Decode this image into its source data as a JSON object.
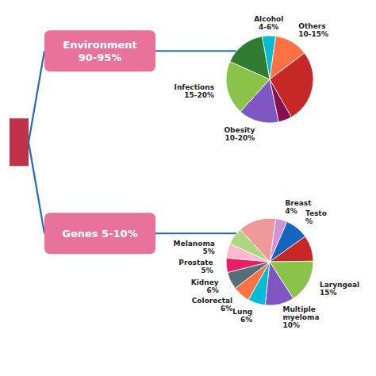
{
  "chart_data": [
    {
      "type": "pie",
      "title": "Environment\n90-95%",
      "color": "#e8729a",
      "categories": [
        "Alcohol\n4-6%",
        "Others\n10-15%",
        null,
        null,
        "Obesity\n10-20%",
        "Infections\n15-20%",
        null
      ],
      "values": [
        5,
        12.5,
        27,
        5,
        15,
        20,
        15.5
      ],
      "colors": [
        "#00bcd4",
        "#ff7043",
        "#c62828",
        "#880e4f",
        "#7e57c2",
        "#8bc34a",
        "#2e7d32"
      ]
    },
    {
      "type": "pie",
      "title": "Genes 5-10%",
      "color": "#e8729a",
      "categories": [
        "Breast\n4%",
        "Testo\n%",
        null,
        "Laryngeal\n15%",
        "Multiple\nmyeloma\n10%",
        "Lung\n6%",
        "Colorectal\n6%",
        "Kidney\n6%",
        "Prostate\n5%",
        "Melanoma\n5%",
        null,
        null
      ],
      "values": [
        4,
        8,
        9,
        15,
        10,
        6,
        6,
        6,
        5,
        5,
        6,
        13
      ],
      "colors": [
        "#ce93d8",
        "#1565c0",
        "#c62828",
        "#8bc34a",
        "#7e57c2",
        "#00bcd4",
        "#ff7043",
        "#546e7a",
        "#e91e63",
        "#f8bbd0",
        "#aed581",
        "#ef9a9a"
      ]
    }
  ]
}
